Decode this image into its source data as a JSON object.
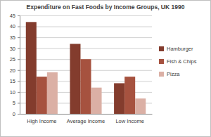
{
  "chart_data": {
    "type": "bar",
    "title": "Expenditure on Fast Foods by Income Groups, UK 1990",
    "categories": [
      "High Income",
      "Average Income",
      "Low Income"
    ],
    "series": [
      {
        "name": "Hamburger",
        "color": "#833c2d",
        "values": [
          42,
          32,
          14
        ]
      },
      {
        "name": "Fish & Chips",
        "color": "#a6523f",
        "values": [
          17,
          25,
          17
        ]
      },
      {
        "name": "Pizza",
        "color": "#dbb0a5",
        "values": [
          19,
          12,
          7
        ]
      }
    ],
    "ylim": [
      0,
      45
    ],
    "yticks": [
      0,
      5,
      10,
      15,
      20,
      25,
      30,
      35,
      40,
      45
    ],
    "grid": true,
    "legend": "right"
  }
}
